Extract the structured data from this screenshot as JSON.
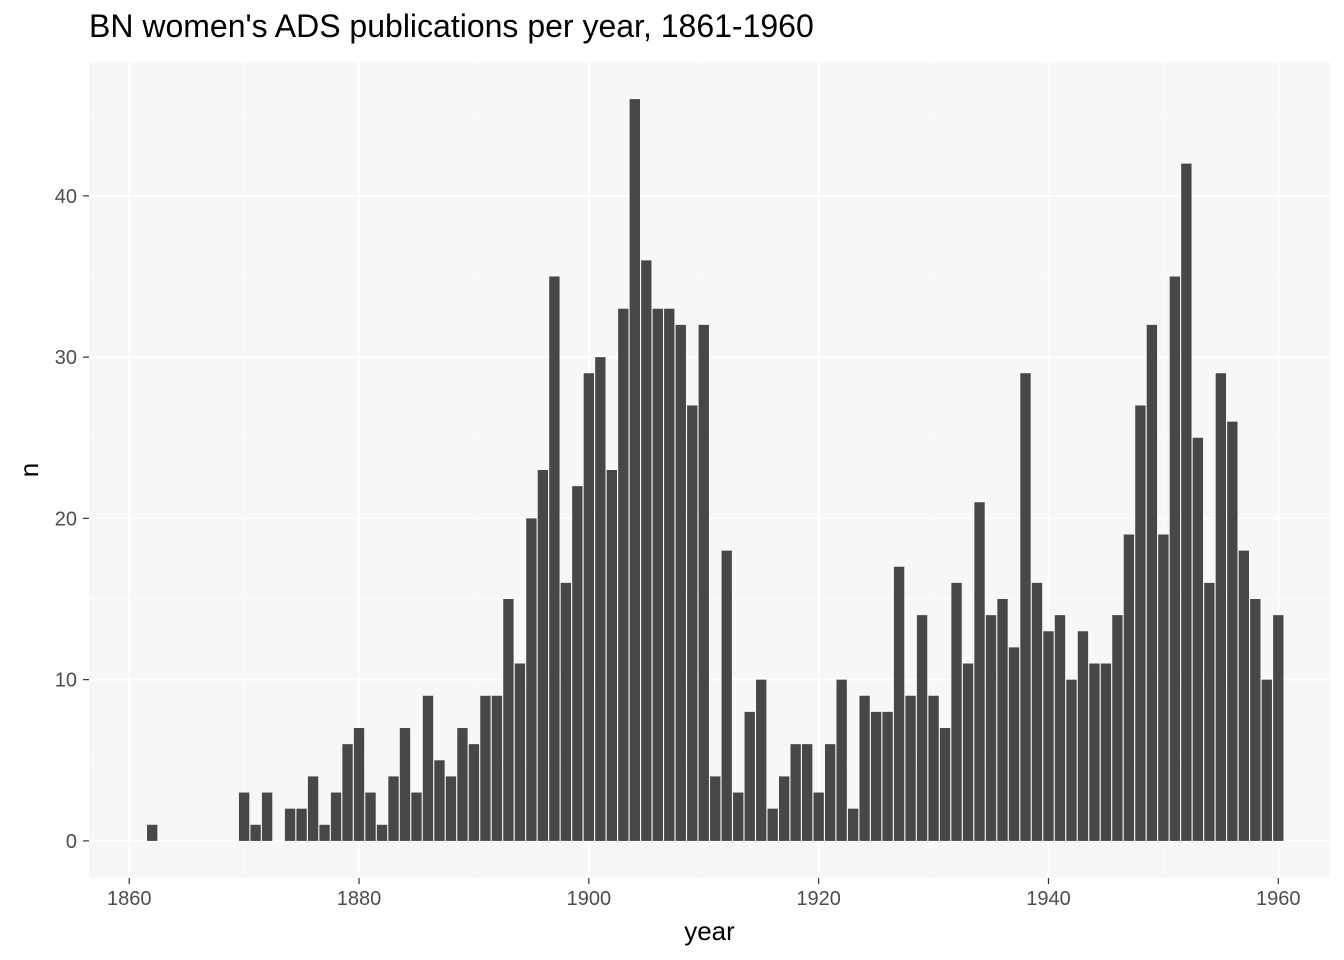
{
  "colors": {
    "panel_background": "#f7f7f7",
    "grid_major": "#ffffff",
    "grid_minor": "#fcfcfc",
    "bar_fill": "#474747",
    "tick_text": "#4d4d4d",
    "tick_mark": "#333333"
  },
  "chart_data": {
    "type": "bar",
    "title": "BN women's ADS publications per year, 1861-1960",
    "xlabel": "year",
    "ylabel": "n",
    "xlim": [
      1856.5,
      1964.5
    ],
    "ylim": [
      -2.3,
      48.3
    ],
    "x_ticks": [
      1860,
      1880,
      1900,
      1920,
      1940,
      1960
    ],
    "x_tick_labels": [
      "1860",
      "1880",
      "1900",
      "1920",
      "1940",
      "1960"
    ],
    "y_ticks": [
      0,
      10,
      20,
      30,
      40
    ],
    "y_tick_labels": [
      "0",
      "10",
      "20",
      "30",
      "40"
    ],
    "grid": true,
    "x": [
      1862,
      1870,
      1871,
      1872,
      1874,
      1875,
      1876,
      1877,
      1878,
      1879,
      1880,
      1881,
      1882,
      1883,
      1884,
      1885,
      1886,
      1887,
      1888,
      1889,
      1890,
      1891,
      1892,
      1893,
      1894,
      1895,
      1896,
      1897,
      1898,
      1899,
      1900,
      1901,
      1902,
      1903,
      1904,
      1905,
      1906,
      1907,
      1908,
      1909,
      1910,
      1911,
      1912,
      1913,
      1914,
      1915,
      1916,
      1917,
      1918,
      1919,
      1920,
      1921,
      1922,
      1923,
      1924,
      1925,
      1926,
      1927,
      1928,
      1929,
      1930,
      1931,
      1932,
      1933,
      1934,
      1935,
      1936,
      1937,
      1938,
      1939,
      1940,
      1941,
      1942,
      1943,
      1944,
      1945,
      1946,
      1947,
      1948,
      1949,
      1950,
      1951,
      1952,
      1953,
      1954,
      1955,
      1956,
      1957,
      1958,
      1959,
      1960
    ],
    "values": [
      1,
      3,
      1,
      3,
      2,
      2,
      4,
      1,
      3,
      6,
      7,
      3,
      1,
      4,
      7,
      3,
      9,
      5,
      4,
      7,
      6,
      9,
      9,
      15,
      11,
      20,
      23,
      35,
      16,
      22,
      29,
      30,
      23,
      33,
      46,
      36,
      33,
      33,
      32,
      27,
      32,
      4,
      18,
      3,
      8,
      10,
      2,
      4,
      6,
      6,
      3,
      6,
      10,
      2,
      9,
      8,
      8,
      17,
      9,
      14,
      9,
      7,
      16,
      11,
      21,
      14,
      15,
      12,
      29,
      16,
      13,
      14,
      10,
      13,
      11,
      11,
      14,
      19,
      27,
      32,
      19,
      35,
      42,
      25,
      16,
      29,
      26,
      18,
      15,
      10,
      14
    ]
  }
}
